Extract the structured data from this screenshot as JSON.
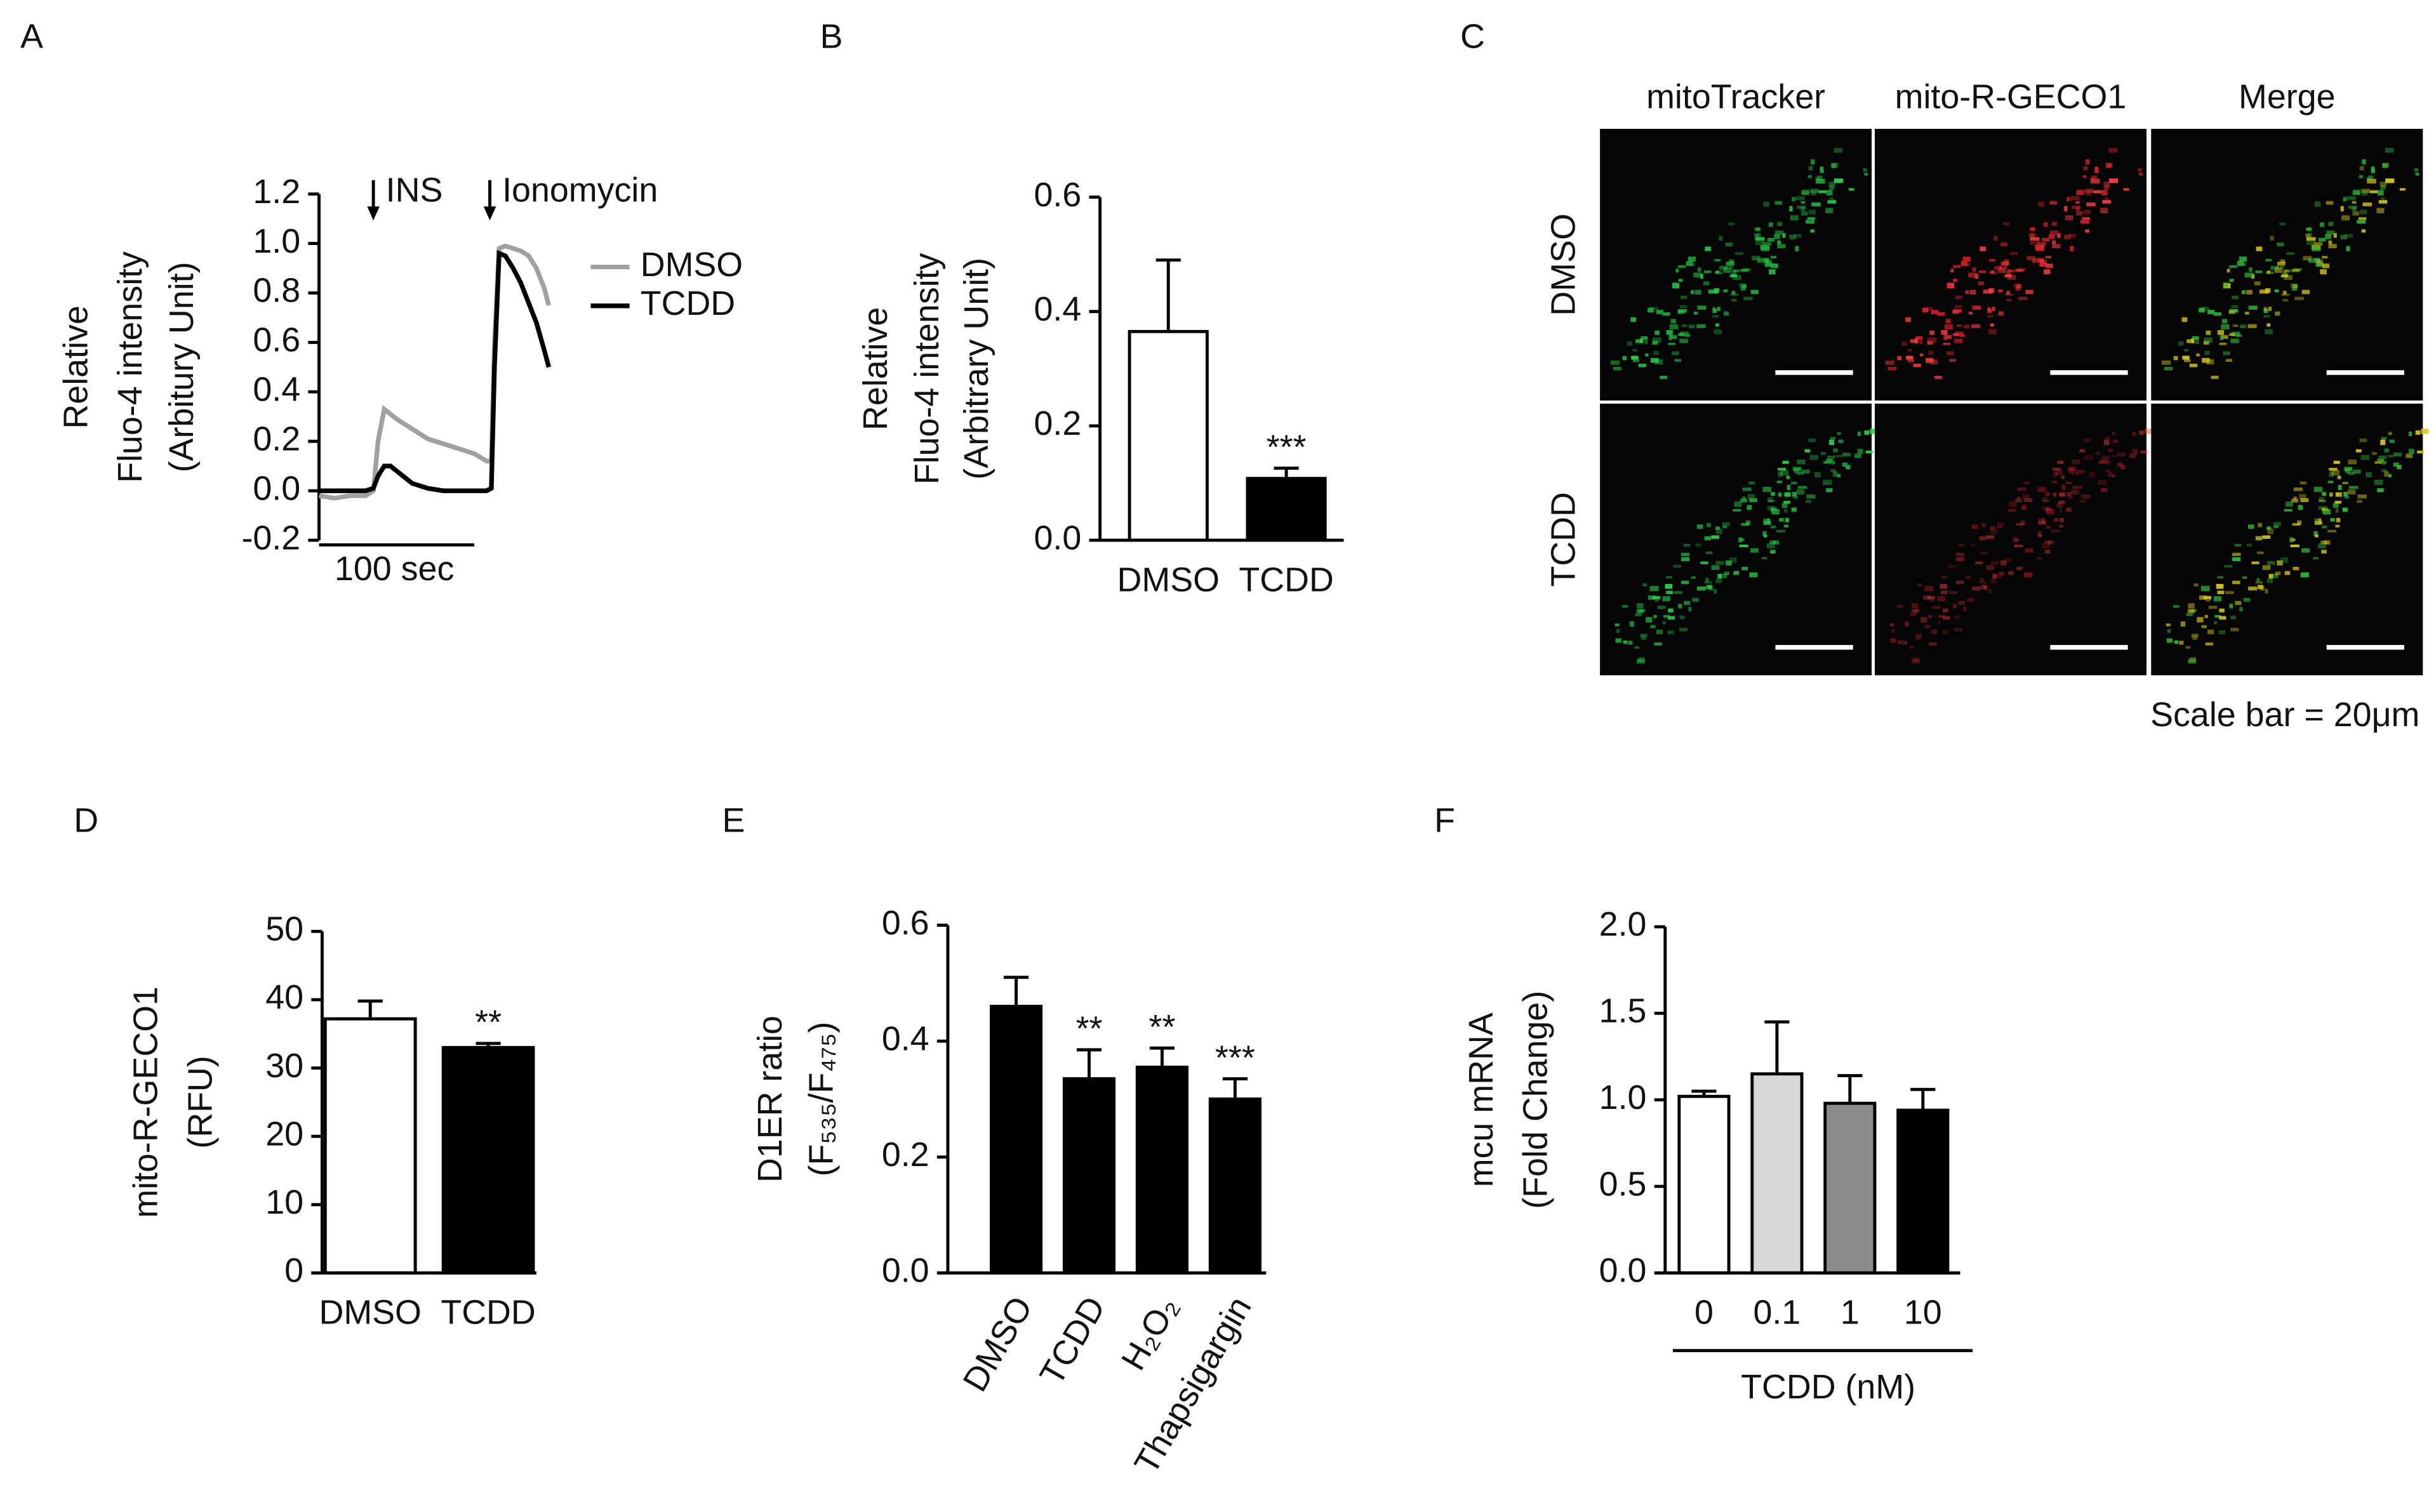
{
  "chart_data": [
    {
      "type": "line",
      "panel": "A",
      "ylabel": [
        "Relative",
        "Fluo-4 intensity",
        "(Arbitury Unit)"
      ],
      "x": [
        0,
        10,
        20,
        30,
        35,
        38,
        42,
        46,
        50,
        60,
        70,
        80,
        90,
        100,
        108,
        111,
        113,
        116,
        120,
        125,
        130,
        135,
        140,
        145,
        148
      ],
      "xlim": [
        0,
        150
      ],
      "series": [
        {
          "name": "DMSO",
          "color": "#a0a0a0",
          "values": [
            -0.02,
            -0.03,
            -0.02,
            -0.02,
            0,
            0.2,
            0.33,
            0.31,
            0.29,
            0.25,
            0.21,
            0.19,
            0.17,
            0.15,
            0.12,
            0.12,
            0.6,
            0.98,
            0.99,
            0.98,
            0.97,
            0.95,
            0.9,
            0.82,
            0.75
          ]
        },
        {
          "name": "TCDD",
          "color": "#000000",
          "values": [
            0,
            0,
            0,
            0,
            0.01,
            0.06,
            0.1,
            0.1,
            0.08,
            0.03,
            0.01,
            0,
            0,
            0,
            0,
            0.01,
            0.5,
            0.96,
            0.95,
            0.9,
            0.84,
            0.76,
            0.68,
            0.57,
            0.5
          ]
        }
      ],
      "ylim": [
        -0.2,
        1.2
      ],
      "yticks": [
        -0.2,
        {
          "value": 0,
          "label": "0.0"
        },
        0.2,
        0.4,
        0.6,
        0.8,
        {
          "value": 1,
          "label": "1.0"
        },
        1.2
      ],
      "annotations": [
        {
          "text": "INS",
          "x": 35
        },
        {
          "text": "Ionomycin",
          "x": 110
        }
      ],
      "scale_bar": {
        "length": 100,
        "label": "100 sec"
      },
      "legend": "right"
    },
    {
      "type": "bar",
      "panel": "B",
      "ylabel": [
        "Relative",
        "Fluo-4 intensity",
        "(Arbitrary Unit)"
      ],
      "categories": [
        "DMSO",
        "TCDD"
      ],
      "values": [
        0.365,
        0.108
      ],
      "errors": [
        0.125,
        0.018
      ],
      "colors": [
        "#ffffff",
        "#000000"
      ],
      "significance": [
        null,
        "***"
      ],
      "ylim": [
        0,
        0.6
      ],
      "yticks": [
        {
          "value": 0,
          "label": "0.0"
        },
        0.2,
        0.4,
        0.6
      ]
    },
    {
      "type": "image-grid",
      "panel": "C",
      "columns": [
        "mitoTracker",
        "mito-R-GECO1",
        "Merge"
      ],
      "column_colors": [
        "#1aa84a",
        "#e3202b",
        "#111111"
      ],
      "rows": [
        "DMSO",
        "TCDD"
      ],
      "caption": "Scale bar = 20μm"
    },
    {
      "type": "bar",
      "panel": "D",
      "ylabel": [
        "mito-R-GECO1",
        "(RFU)"
      ],
      "categories": [
        "DMSO",
        "TCDD"
      ],
      "values": [
        37.2,
        33.0
      ],
      "errors": [
        2.6,
        0.6
      ],
      "colors": [
        "#ffffff",
        "#000000"
      ],
      "significance": [
        null,
        "**"
      ],
      "ylim": [
        0,
        50
      ],
      "yticks": [
        0,
        10,
        20,
        30,
        40,
        50
      ]
    },
    {
      "type": "bar",
      "panel": "E",
      "ylabel": [
        "D1ER ratio",
        "(F₅₃₅/F₄₇₅)"
      ],
      "categories": [
        "DMSO",
        "TCDD",
        "H₂O₂",
        "Thapsigargin"
      ],
      "values": [
        0.46,
        0.335,
        0.355,
        0.3
      ],
      "errors": [
        0.05,
        0.05,
        0.033,
        0.035
      ],
      "colors": [
        "#000000",
        "#000000",
        "#000000",
        "#000000"
      ],
      "significance": [
        null,
        "**",
        "**",
        "***"
      ],
      "ylim": [
        0,
        0.6
      ],
      "yticks": [
        {
          "value": 0,
          "label": "0.0"
        },
        0.2,
        0.4,
        0.6
      ]
    },
    {
      "type": "bar",
      "panel": "F",
      "ylabel": [
        "mcu mRNA",
        "(Fold Change)"
      ],
      "categories": [
        "0",
        "0.1",
        "1",
        "10"
      ],
      "xlabel": "TCDD (nM)",
      "values": [
        1.02,
        1.15,
        0.98,
        0.94
      ],
      "errors": [
        0.03,
        0.3,
        0.16,
        0.12
      ],
      "colors": [
        "#ffffff",
        "#d6d9d9",
        "#8a8c8c",
        "#000000"
      ],
      "significance": [
        null,
        null,
        null,
        null
      ],
      "ylim": [
        0,
        2
      ],
      "yticks": [
        {
          "value": 0,
          "label": "0.0"
        },
        {
          "value": 0.5,
          "label": "0.5"
        },
        {
          "value": 1,
          "label": "1.0"
        },
        {
          "value": 1.5,
          "label": "1.5"
        },
        {
          "value": 2,
          "label": "2.0"
        }
      ]
    }
  ]
}
